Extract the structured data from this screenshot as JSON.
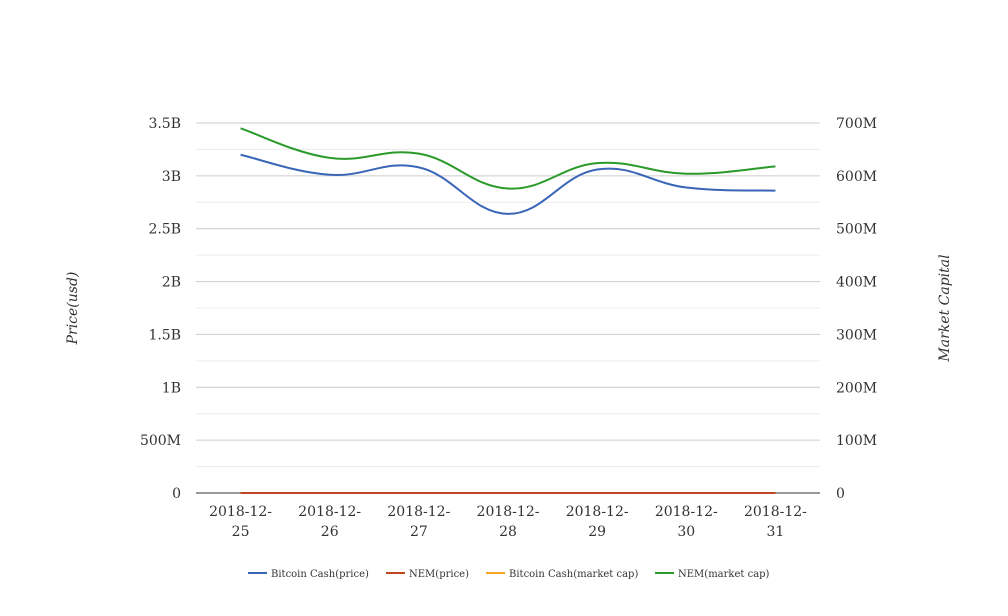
{
  "chart_data": {
    "type": "line",
    "title": "",
    "x": [
      "2018-12-25",
      "2018-12-26",
      "2018-12-27",
      "2018-12-28",
      "2018-12-29",
      "2018-12-30",
      "2018-12-31"
    ],
    "x_tick_labels": [
      [
        "2018-12-",
        "25"
      ],
      [
        "2018-12-",
        "26"
      ],
      [
        "2018-12-",
        "27"
      ],
      [
        "2018-12-",
        "28"
      ],
      [
        "2018-12-",
        "29"
      ],
      [
        "2018-12-",
        "30"
      ],
      [
        "2018-12-",
        "31"
      ]
    ],
    "ylabel_left": "Price(usd)",
    "ylabel_right": "Market Capital",
    "ylim_left": [
      0,
      3500000000
    ],
    "ylim_right": [
      0,
      700000000
    ],
    "yticks_left": [
      "0",
      "500M",
      "1B",
      "1.5B",
      "2B",
      "2.5B",
      "3B",
      "3.5B"
    ],
    "yticks_right": [
      "0",
      "100M",
      "200M",
      "300M",
      "400M",
      "500M",
      "600M",
      "700M"
    ],
    "grid": true,
    "legend_position": "bottom",
    "series": [
      {
        "name": "Bitcoin Cash(price)",
        "axis": "left",
        "color": "#3a66b8",
        "values": [
          3200000000,
          3010000000,
          3080000000,
          2640000000,
          3060000000,
          2890000000,
          2860000000
        ]
      },
      {
        "name": "NEM(price)",
        "axis": "left",
        "color": "#c0461f",
        "values": [
          0.06,
          0.06,
          0.06,
          0.05,
          0.06,
          0.06,
          0.06
        ]
      },
      {
        "name": "Bitcoin Cash(market cap)",
        "axis": "left",
        "color": "#f5a623",
        "values": [
          175,
          165,
          170,
          145,
          170,
          160,
          158
        ]
      },
      {
        "name": "NEM(market cap)",
        "axis": "right",
        "color": "#2a9a2a",
        "values": [
          690000000,
          634000000,
          642000000,
          576000000,
          624000000,
          604000000,
          618000000
        ]
      }
    ]
  }
}
